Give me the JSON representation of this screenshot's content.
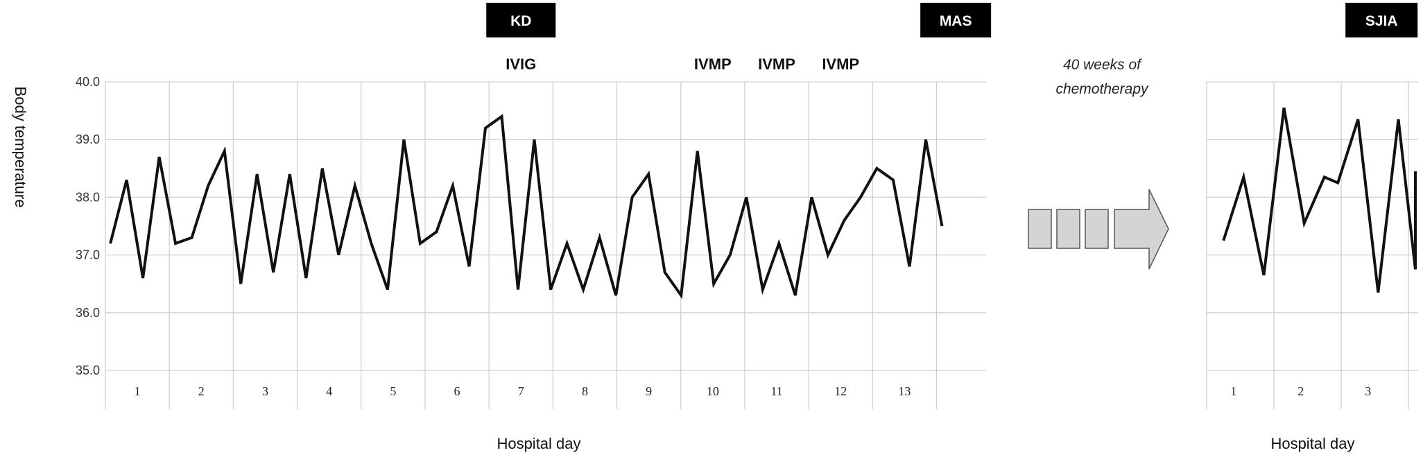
{
  "chart_data": [
    {
      "type": "line",
      "ylabel": "Body temperature",
      "xlabel": "Hospital day",
      "ylim": [
        35.0,
        40.0
      ],
      "yticks": [
        "40.0",
        "39.0",
        "38.0",
        "37.0",
        "36.0",
        "35.0"
      ],
      "grid": true,
      "categories": [
        "1",
        "2",
        "3",
        "4",
        "5",
        "6",
        "7",
        "8",
        "9",
        "10",
        "11",
        "12",
        "13"
      ],
      "x": [
        1.15,
        1.65,
        2.15,
        2.65,
        3.15,
        3.65,
        4.15,
        4.65,
        5.15,
        5.65,
        6.15,
        6.65,
        7.15,
        7.65,
        8.15,
        8.65,
        9.15,
        9.65,
        10.15,
        10.65,
        11.15,
        11.65,
        12.15,
        12.65,
        13.15,
        13.65,
        14.15,
        14.65,
        15.15,
        15.65,
        16.15,
        16.65,
        17.15,
        17.65,
        18.15,
        18.65,
        19.15,
        19.65,
        20.15,
        20.65,
        21.15,
        21.65,
        22.15,
        22.65,
        23.15,
        23.65,
        24.15,
        24.65,
        25.15,
        25.65
      ],
      "series": [
        {
          "values": [
            37.2,
            38.3,
            36.6,
            38.7,
            37.2,
            37.3,
            38.2,
            38.8,
            36.5,
            38.4,
            36.7,
            38.4,
            36.6,
            38.5,
            37.0,
            38.2,
            37.2,
            36.4,
            39.0,
            37.2,
            37.4,
            38.2,
            36.8,
            39.2,
            39.4,
            36.4,
            39.0,
            36.4,
            37.2,
            36.4,
            37.3,
            36.3,
            38.0,
            38.4,
            36.7,
            36.3,
            38.8,
            36.5,
            37.0,
            38.0,
            36.4,
            37.2,
            36.3,
            38.0,
            37.0,
            37.6,
            38.0,
            38.5,
            38.3,
            36.8
          ]
        }
      ],
      "extra_points": {
        "x": [
          26.15,
          26.65
        ],
        "values": [
          39.0,
          37.5
        ]
      },
      "annotations": {
        "boxes": [
          {
            "label": "KD",
            "at": 7.0
          },
          {
            "label": "MAS",
            "at": 13.8
          }
        ],
        "treatments": [
          {
            "label": "IVIG",
            "at": 7.0
          },
          {
            "label": "IVMP",
            "at": 10.0
          },
          {
            "label": "IVMP",
            "at": 11.0
          },
          {
            "label": "IVMP",
            "at": 12.0
          }
        ]
      }
    },
    {
      "type": "line",
      "xlabel": "Hospital day",
      "ylim": [
        35.0,
        40.0
      ],
      "grid": true,
      "categories": [
        "1",
        "2",
        "3"
      ],
      "x": [
        0.25,
        0.55,
        0.85,
        1.15,
        1.45,
        1.75,
        1.95,
        2.25,
        2.55,
        2.85,
        3.15,
        3.45
      ],
      "series": [
        {
          "values": [
            37.25,
            38.35,
            36.65,
            39.55,
            37.55,
            38.35,
            38.25,
            39.35,
            36.35,
            39.35,
            36.75,
            38.45
          ]
        }
      ],
      "annotations": {
        "boxes": [
          {
            "label": "SJIA",
            "at": 2.6
          }
        ]
      }
    }
  ],
  "transition_note": "40 weeks of\nchemotherapy",
  "transition_note_lines": [
    "40 weeks of",
    "chemotherapy"
  ],
  "colors": {
    "line": "#111111",
    "grid": "#d0d0d0",
    "box": "#000000",
    "arrow_fill": "#d4d4d4",
    "arrow_stroke": "#555555"
  }
}
